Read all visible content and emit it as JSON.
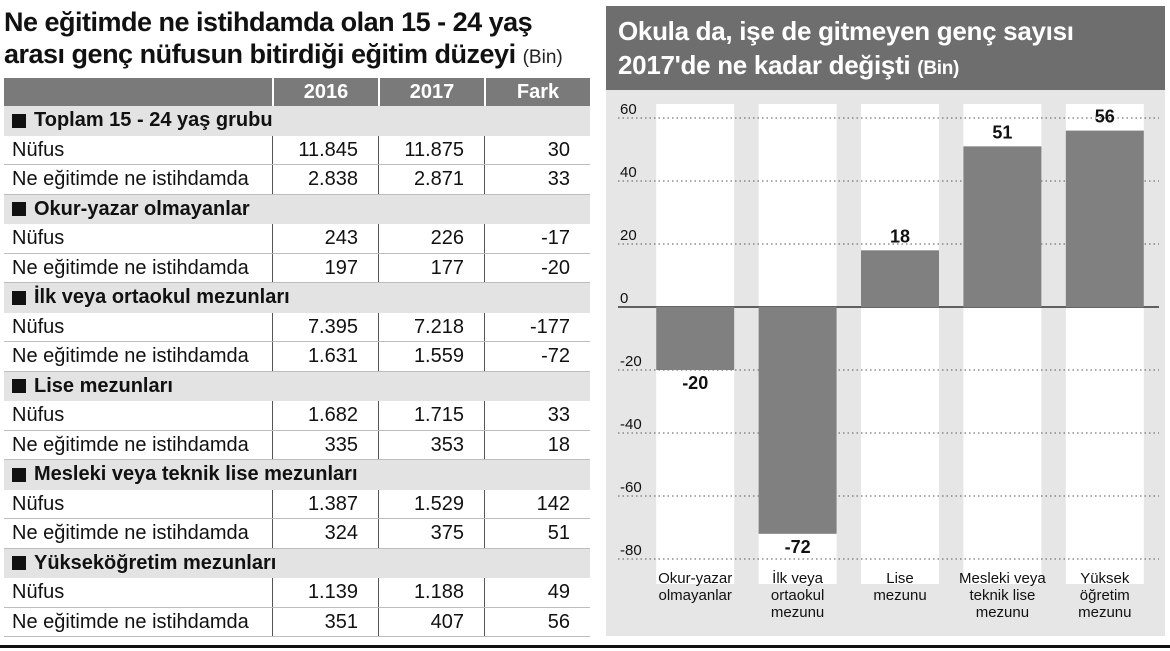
{
  "left": {
    "title_line1": "Ne eğitimde ne istihdamda olan 15 - 24 yaş",
    "title_line2": "arası genç nüfusun bitirdiği eğitim düzeyi",
    "title_unit": "(Bin)",
    "headers": [
      "2016",
      "2017",
      "Fark"
    ],
    "groups": [
      {
        "name": "Toplam 15 - 24 yaş grubu",
        "rows": [
          {
            "label": "Nüfus",
            "v2016": "11.845",
            "v2017": "11.875",
            "fark": "30"
          },
          {
            "label": "Ne eğitimde ne istihdamda",
            "v2016": "2.838",
            "v2017": "2.871",
            "fark": "33"
          }
        ]
      },
      {
        "name": "Okur-yazar olmayanlar",
        "rows": [
          {
            "label": "Nüfus",
            "v2016": "243",
            "v2017": "226",
            "fark": "-17"
          },
          {
            "label": "Ne eğitimde ne istihdamda",
            "v2016": "197",
            "v2017": "177",
            "fark": "-20"
          }
        ]
      },
      {
        "name": "İlk veya ortaokul mezunları",
        "rows": [
          {
            "label": "Nüfus",
            "v2016": "7.395",
            "v2017": "7.218",
            "fark": "-177"
          },
          {
            "label": "Ne eğitimde ne istihdamda",
            "v2016": "1.631",
            "v2017": "1.559",
            "fark": "-72"
          }
        ]
      },
      {
        "name": "Lise mezunları",
        "rows": [
          {
            "label": "Nüfus",
            "v2016": "1.682",
            "v2017": "1.715",
            "fark": "33"
          },
          {
            "label": "Ne eğitimde ne istihdamda",
            "v2016": "335",
            "v2017": "353",
            "fark": "18"
          }
        ]
      },
      {
        "name": "Mesleki veya teknik lise mezunları",
        "rows": [
          {
            "label": "Nüfus",
            "v2016": "1.387",
            "v2017": "1.529",
            "fark": "142"
          },
          {
            "label": "Ne eğitimde ne istihdamda",
            "v2016": "324",
            "v2017": "375",
            "fark": "51"
          }
        ]
      },
      {
        "name": "Yükseköğretim mezunları",
        "rows": [
          {
            "label": "Nüfus",
            "v2016": "1.139",
            "v2017": "1.188",
            "fark": "49"
          },
          {
            "label": "Ne eğitimde ne istihdamda",
            "v2016": "351",
            "v2017": "407",
            "fark": "56"
          }
        ]
      }
    ]
  },
  "right": {
    "title_line1": "Okula da, işe de gitmeyen genç sayısı",
    "title_line2": "2017'de ne kadar değişti",
    "title_unit": "(Bin)"
  },
  "colors": {
    "bar": "#808080",
    "header": "#6e6e6e",
    "panel": "#e6e6e6",
    "group_row": "#e3e3e3"
  },
  "chart_data": {
    "type": "bar",
    "title": "Okula da, işe de gitmeyen genç sayısı 2017'de ne kadar değişti (Bin)",
    "categories": [
      [
        "Okur-yazar",
        "olmayanlar"
      ],
      [
        "İlk veya",
        "ortaokul",
        "mezunu"
      ],
      [
        "Lise",
        "mezunu"
      ],
      [
        "Mesleki veya",
        "teknik lise",
        "mezunu"
      ],
      [
        "Yüksek",
        "öğretim",
        "mezunu"
      ]
    ],
    "values": [
      -20,
      -72,
      18,
      51,
      56
    ],
    "value_labels": [
      "-20",
      "-72",
      "18",
      "51",
      "56"
    ],
    "yticks": [
      60,
      40,
      20,
      0,
      -20,
      -40,
      -60,
      -80
    ],
    "ylim": [
      -80,
      60
    ],
    "grid": true,
    "xlabel": "",
    "ylabel": ""
  }
}
